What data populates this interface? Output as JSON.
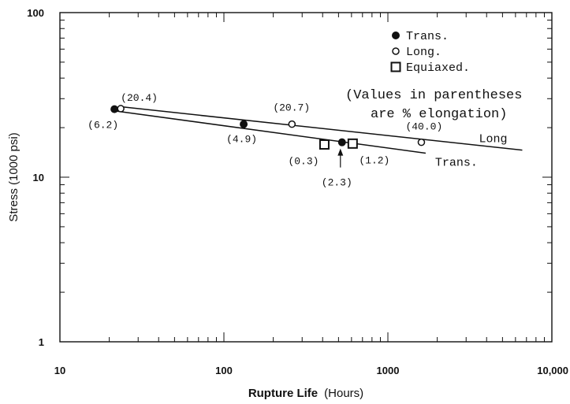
{
  "chart_data": {
    "type": "scatter",
    "x_scale": "log",
    "y_scale": "log",
    "xlim": [
      10,
      10000
    ],
    "ylim": [
      1,
      100
    ],
    "x_ticks": [
      "10",
      "100",
      "1000",
      "10,000"
    ],
    "y_ticks": [
      "1",
      "10",
      "100"
    ],
    "xlabel_main": "Rupture Life",
    "xlabel_unit": "(Hours)",
    "ylabel": "Stress (1000 psi)",
    "series": [
      {
        "name": "Trans.",
        "marker": "filled-circle",
        "points": [
          {
            "x": 21.5,
            "y": 25.9,
            "label": "(6.2)"
          },
          {
            "x": 132,
            "y": 21.0,
            "label": "(4.9)"
          },
          {
            "x": 525,
            "y": 16.3,
            "label": "(2.3)"
          }
        ]
      },
      {
        "name": "Long.",
        "marker": "open-circle",
        "points": [
          {
            "x": 23.5,
            "y": 26.1,
            "label": "(20.4)"
          },
          {
            "x": 260,
            "y": 21.0,
            "label": "(20.7)"
          },
          {
            "x": 1600,
            "y": 16.3,
            "label": "(40.0)"
          }
        ]
      },
      {
        "name": "Equiaxed.",
        "marker": "open-square",
        "points": [
          {
            "x": 410,
            "y": 15.8,
            "label": "(0.3)"
          },
          {
            "x": 610,
            "y": 16.0,
            "label": "(1.2)"
          }
        ]
      }
    ],
    "fit_lines": [
      {
        "name": "Long",
        "from": [
          23.5,
          26.8
        ],
        "to": [
          6600,
          14.6
        ]
      },
      {
        "name": "Trans.",
        "from": [
          21.5,
          25.3
        ],
        "to": [
          1700,
          14.0
        ]
      }
    ],
    "note_line1": "(Values in parentheses",
    "note_line2": "are % elongation)",
    "legend_placement": "top-right",
    "grid": false,
    "colors": {
      "ink": "#111111",
      "background": "#ffffff"
    }
  }
}
